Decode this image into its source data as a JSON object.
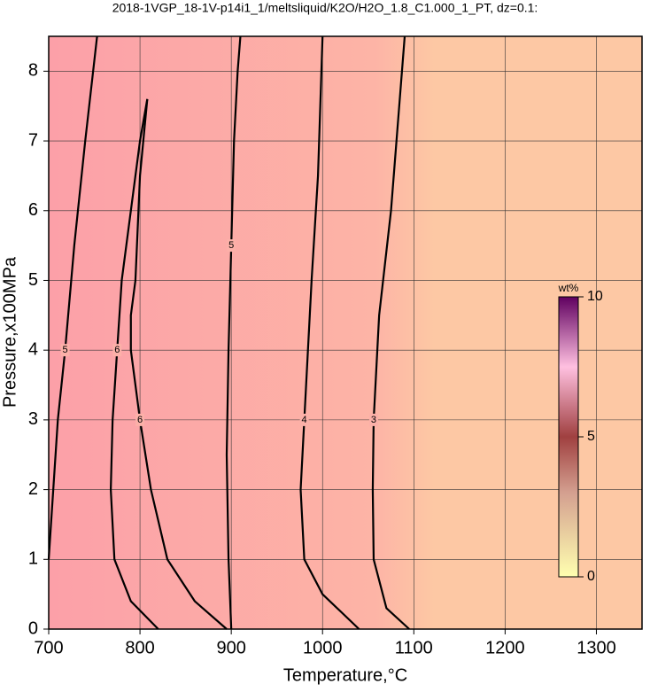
{
  "chart_data": {
    "type": "contour",
    "title": "2018-1VGP_18-1V-p14i1_1/meltsliquid/K2O/H2O_1.8_C1.000_1_PT, dz=0.1:",
    "x_label": "Temperature,°C",
    "y_label": "Pressure,x100MPa",
    "xlim": [
      700,
      1350
    ],
    "ylim": [
      0,
      8.5
    ],
    "xticks": [
      700,
      800,
      900,
      1000,
      1100,
      1200,
      1300
    ],
    "yticks": [
      0,
      1,
      2,
      3,
      4,
      5,
      6,
      7,
      8
    ],
    "grid": true,
    "contours": [
      {
        "level": 6,
        "x": [
          820,
          790,
          772,
          768,
          770,
          775,
          780,
          790,
          800,
          808
        ],
        "y": [
          0,
          0.4,
          1.0,
          2.0,
          3.0,
          4.0,
          5.0,
          6.0,
          7.0,
          7.6
        ]
      },
      {
        "level": 6,
        "x": [
          808,
          800,
          795,
          790,
          790,
          800,
          812,
          830,
          860,
          895
        ],
        "y": [
          7.6,
          6.5,
          5.0,
          4.5,
          4.0,
          3.0,
          2.0,
          1.0,
          0.4,
          0
        ]
      },
      {
        "level": 5,
        "x": [
          700,
          705,
          710,
          718,
          728,
          740,
          753
        ],
        "y": [
          1.0,
          2.0,
          3.0,
          4.0,
          5.5,
          7.0,
          8.5
        ]
      },
      {
        "level": 5,
        "x": [
          900,
          897,
          895,
          897,
          900,
          903,
          907,
          910
        ],
        "y": [
          0,
          1.0,
          2.5,
          4.0,
          5.5,
          7.0,
          8.0,
          8.5
        ]
      },
      {
        "level": 4,
        "x": [
          1040,
          1000,
          980,
          976,
          980,
          988,
          995,
          1000
        ],
        "y": [
          0,
          0.5,
          1.0,
          2.0,
          3.0,
          5.0,
          6.5,
          8.5
        ]
      },
      {
        "level": 3,
        "x": [
          1095,
          1070,
          1056,
          1055,
          1056,
          1062,
          1075,
          1090
        ],
        "y": [
          0,
          0.3,
          1.0,
          2.0,
          3.0,
          4.5,
          6.0,
          8.5
        ]
      }
    ],
    "colorbar": {
      "label": "wt%",
      "lim": [
        0,
        10
      ],
      "ticks": [
        0,
        5,
        10
      ]
    }
  }
}
